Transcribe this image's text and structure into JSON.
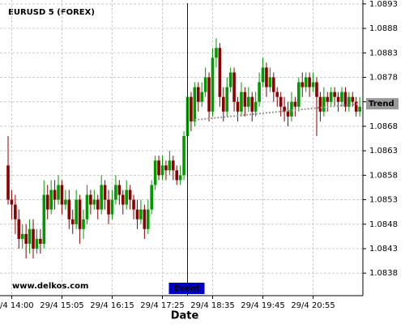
{
  "chart_data": {
    "type": "candlestick",
    "title": "EURUSD 5 (FOREX)",
    "x_label": "Date",
    "watermark": "www.delkos.com",
    "up_color": "#009900",
    "down_color": "#8b0000",
    "grid": true,
    "ylim": [
      1.08334,
      1.08938
    ],
    "yticks": [
      1.0838,
      1.0843,
      1.0848,
      1.0853,
      1.0858,
      1.0863,
      1.0868,
      1.0873,
      1.0878,
      1.0883,
      1.0888,
      1.0893
    ],
    "categories": [
      null,
      "29/4 14:00",
      null,
      null,
      null,
      null,
      null,
      null,
      null,
      null,
      null,
      null,
      null,
      null,
      null,
      "29/4 15:05",
      null,
      null,
      null,
      null,
      null,
      null,
      null,
      null,
      null,
      null,
      null,
      null,
      null,
      "29/4 16:15",
      null,
      null,
      null,
      null,
      null,
      null,
      null,
      null,
      null,
      null,
      null,
      null,
      null,
      "29/4 17:25",
      null,
      null,
      null,
      null,
      null,
      null,
      null,
      null,
      null,
      null,
      null,
      null,
      null,
      "29/4 18:35",
      null,
      null,
      null,
      null,
      null,
      null,
      null,
      null,
      null,
      null,
      null,
      null,
      null,
      "29/4 19:45",
      null,
      null,
      null,
      null,
      null,
      null,
      null,
      null,
      null,
      null,
      null,
      null,
      null,
      "29/4 20:55",
      null,
      null,
      null,
      null,
      null,
      null,
      null,
      null,
      null,
      null,
      null,
      null,
      null
    ],
    "open": [
      1.086,
      1.0853,
      1.0852,
      1.0849,
      1.0845,
      1.0846,
      1.0844,
      1.0847,
      1.0843,
      1.0845,
      1.0844,
      1.0854,
      1.0851,
      1.0855,
      1.0853,
      1.0856,
      1.0852,
      1.0853,
      1.0849,
      1.0848,
      1.0853,
      1.0847,
      1.0849,
      1.0854,
      1.0852,
      1.0853,
      1.0851,
      1.0856,
      1.0853,
      1.085,
      1.0853,
      1.0856,
      1.0854,
      1.0852,
      1.0855,
      1.0853,
      1.0851,
      1.0849,
      1.0851,
      1.0847,
      1.0851,
      1.0856,
      1.0861,
      1.0858,
      1.086,
      1.0859,
      1.0861,
      1.0859,
      1.0857,
      1.0858,
      1.0866,
      1.0874,
      1.0869,
      1.0876,
      1.0873,
      1.0875,
      1.0878,
      1.0871,
      1.0882,
      1.0884,
      1.0874,
      1.0871,
      1.0876,
      1.0879,
      1.0873,
      1.0871,
      1.0875,
      1.0872,
      1.0874,
      1.0871,
      1.0873,
      1.0877,
      1.088,
      1.0876,
      1.0878,
      1.0875,
      1.0874,
      1.0872,
      1.0871,
      1.087,
      1.0873,
      1.0872,
      1.0877,
      1.0876,
      1.0878,
      1.0876,
      1.0877,
      1.0874,
      1.0871,
      1.0874,
      1.0873,
      1.0875,
      1.0874,
      1.0873,
      1.0875,
      1.0872,
      1.0874,
      1.0873,
      1.0871
    ],
    "high": [
      1.0866,
      1.0855,
      1.0854,
      1.0851,
      1.0848,
      1.0848,
      1.0849,
      1.0849,
      1.0847,
      1.0847,
      1.0857,
      1.0856,
      1.0857,
      1.0857,
      1.0858,
      1.0857,
      1.0855,
      1.0855,
      1.0851,
      1.0855,
      1.0854,
      1.0851,
      1.0856,
      1.0855,
      1.0855,
      1.0854,
      1.0858,
      1.0857,
      1.0855,
      1.0855,
      1.0858,
      1.0857,
      1.0855,
      1.0857,
      1.0856,
      1.0854,
      1.0853,
      1.0853,
      1.0852,
      1.0853,
      1.0857,
      1.0862,
      1.0862,
      1.0862,
      1.0861,
      1.0863,
      1.0862,
      1.086,
      1.086,
      1.0867,
      1.0876,
      1.0875,
      1.0877,
      1.0877,
      1.0877,
      1.088,
      1.0879,
      1.0884,
      1.0886,
      1.0885,
      1.0876,
      1.0878,
      1.088,
      1.088,
      1.0874,
      1.0877,
      1.0876,
      1.0876,
      1.0875,
      1.0875,
      1.0879,
      1.0882,
      1.0881,
      1.088,
      1.0879,
      1.0876,
      1.0875,
      1.0874,
      1.0873,
      1.0875,
      1.0874,
      1.0878,
      1.0879,
      1.0879,
      1.0879,
      1.0879,
      1.0878,
      1.0875,
      1.0876,
      1.0875,
      1.0876,
      1.0876,
      1.0875,
      1.0876,
      1.0876,
      1.0875,
      1.0875,
      1.0874,
      1.0874
    ],
    "low": [
      1.0852,
      1.0849,
      1.0846,
      1.0843,
      1.0843,
      1.0841,
      1.0842,
      1.0841,
      1.0842,
      1.0842,
      1.0843,
      1.0849,
      1.085,
      1.0851,
      1.0852,
      1.085,
      1.0851,
      1.0847,
      1.0846,
      1.0847,
      1.0844,
      1.0845,
      1.0848,
      1.085,
      1.0851,
      1.0849,
      1.085,
      1.0851,
      1.0848,
      1.0849,
      1.0852,
      1.0852,
      1.085,
      1.0851,
      1.0851,
      1.0849,
      1.0847,
      1.0848,
      1.0845,
      1.0846,
      1.085,
      1.0855,
      1.0857,
      1.0857,
      1.0857,
      1.0858,
      1.0857,
      1.0856,
      1.0856,
      1.0857,
      1.0864,
      1.0867,
      1.0868,
      1.0871,
      1.0872,
      1.0874,
      1.0869,
      1.087,
      1.088,
      1.0872,
      1.0869,
      1.087,
      1.0875,
      1.0871,
      1.0869,
      1.087,
      1.087,
      1.0871,
      1.0869,
      1.087,
      1.0872,
      1.0876,
      1.0874,
      1.0875,
      1.0873,
      1.0872,
      1.087,
      1.0869,
      1.0868,
      1.0869,
      1.087,
      1.0871,
      1.0874,
      1.0875,
      1.0874,
      1.0875,
      1.0866,
      1.0869,
      1.087,
      1.0871,
      1.0872,
      1.0872,
      1.0871,
      1.0872,
      1.0871,
      1.0871,
      1.0872,
      1.087,
      1.087
    ],
    "close": [
      1.0853,
      1.0852,
      1.0849,
      1.0845,
      1.0846,
      1.0844,
      1.0847,
      1.0843,
      1.0845,
      1.0844,
      1.0854,
      1.0851,
      1.0855,
      1.0853,
      1.0856,
      1.0852,
      1.0853,
      1.0849,
      1.0848,
      1.0853,
      1.0847,
      1.0849,
      1.0854,
      1.0852,
      1.0853,
      1.0851,
      1.0856,
      1.0853,
      1.085,
      1.0853,
      1.0856,
      1.0854,
      1.0852,
      1.0855,
      1.0853,
      1.0851,
      1.0849,
      1.0851,
      1.0847,
      1.0851,
      1.0856,
      1.0861,
      1.0858,
      1.086,
      1.0859,
      1.0861,
      1.0859,
      1.0857,
      1.0858,
      1.0866,
      1.0874,
      1.0869,
      1.0876,
      1.0873,
      1.0875,
      1.0878,
      1.0871,
      1.0882,
      1.0884,
      1.0874,
      1.0871,
      1.0876,
      1.0879,
      1.0873,
      1.0871,
      1.0875,
      1.0872,
      1.0874,
      1.0871,
      1.0873,
      1.0877,
      1.088,
      1.0876,
      1.0878,
      1.0875,
      1.0874,
      1.0872,
      1.0871,
      1.087,
      1.0873,
      1.0872,
      1.0877,
      1.0876,
      1.0878,
      1.0876,
      1.0877,
      1.0874,
      1.0871,
      1.0874,
      1.0873,
      1.0875,
      1.0874,
      1.0873,
      1.0875,
      1.0872,
      1.0874,
      1.0873,
      1.0871,
      1.0872
    ],
    "event": {
      "label": "Event",
      "index": 50,
      "color": "#0000cc"
    },
    "trend": {
      "label": "Trend",
      "x": [
        52,
        98
      ],
      "values": [
        1.08693,
        1.08726
      ],
      "color": "#999999"
    }
  }
}
